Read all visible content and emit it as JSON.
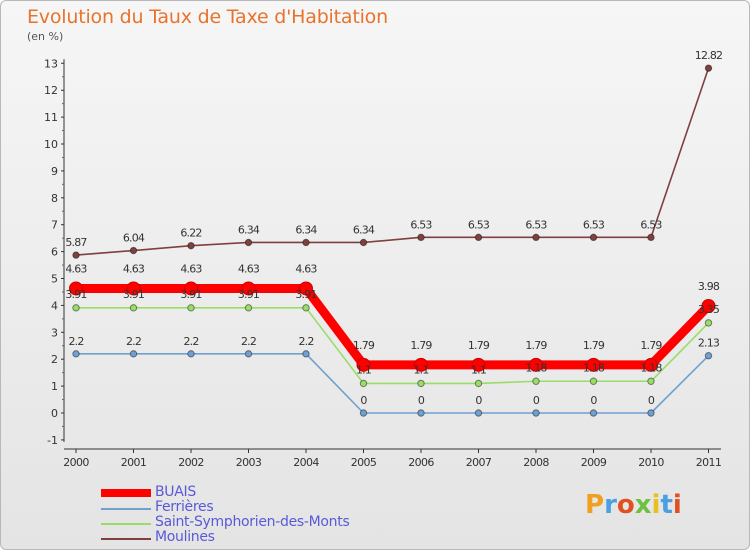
{
  "title": "Evolution du Taux de Taxe d'Habitation",
  "unit": "(en %)",
  "logo": "Proxiti",
  "chart_data": {
    "type": "line",
    "x": [
      "2000",
      "2001",
      "2002",
      "2003",
      "2004",
      "2005",
      "2006",
      "2007",
      "2008",
      "2009",
      "2010",
      "2011"
    ],
    "ylim": [
      -1,
      13
    ],
    "yticks": [
      -1,
      0,
      1,
      2,
      3,
      4,
      5,
      6,
      7,
      8,
      9,
      10,
      11,
      12,
      13
    ],
    "grid": false,
    "legend_position": "bottom-left",
    "series": [
      {
        "name": "BUAIS",
        "color": "#ff0000",
        "values": [
          4.63,
          4.63,
          4.63,
          4.63,
          4.63,
          1.79,
          1.79,
          1.79,
          1.79,
          1.79,
          1.79,
          3.98
        ],
        "labels": [
          "4.63",
          "4.63",
          "4.63",
          "4.63",
          "4.63",
          "1.79",
          "1.79",
          "1.79",
          "1.79",
          "1.79",
          "1.79",
          "3.98"
        ]
      },
      {
        "name": "Ferrières",
        "color": "#6fa0d0",
        "values": [
          2.2,
          2.2,
          2.2,
          2.2,
          2.2,
          0,
          0,
          0,
          0,
          0,
          0,
          2.13
        ],
        "labels": [
          "2.2",
          "2.2",
          "2.2",
          "2.2",
          "2.2",
          "0",
          "0",
          "0",
          "0",
          "0",
          "0",
          "2.13"
        ]
      },
      {
        "name": "Saint-Symphorien-des-Monts",
        "color": "#99dd66",
        "values": [
          3.91,
          3.91,
          3.91,
          3.91,
          3.91,
          1.1,
          1.1,
          1.1,
          1.18,
          1.18,
          1.18,
          3.35
        ],
        "labels": [
          "3.91",
          "3.91",
          "3.91",
          "3.91",
          "3.91",
          "1.1",
          "1.1",
          "1.1",
          "1.18",
          "1.18",
          "1.18",
          "3.35"
        ]
      },
      {
        "name": "Moulines",
        "color": "#804040",
        "values": [
          5.87,
          6.04,
          6.22,
          6.34,
          6.34,
          6.34,
          6.53,
          6.53,
          6.53,
          6.53,
          6.53,
          12.82
        ],
        "labels": [
          "5.87",
          "6.04",
          "6.22",
          "6.34",
          "6.34",
          "6.34",
          "6.53",
          "6.53",
          "6.53",
          "6.53",
          "6.53",
          "12.82"
        ]
      }
    ]
  }
}
